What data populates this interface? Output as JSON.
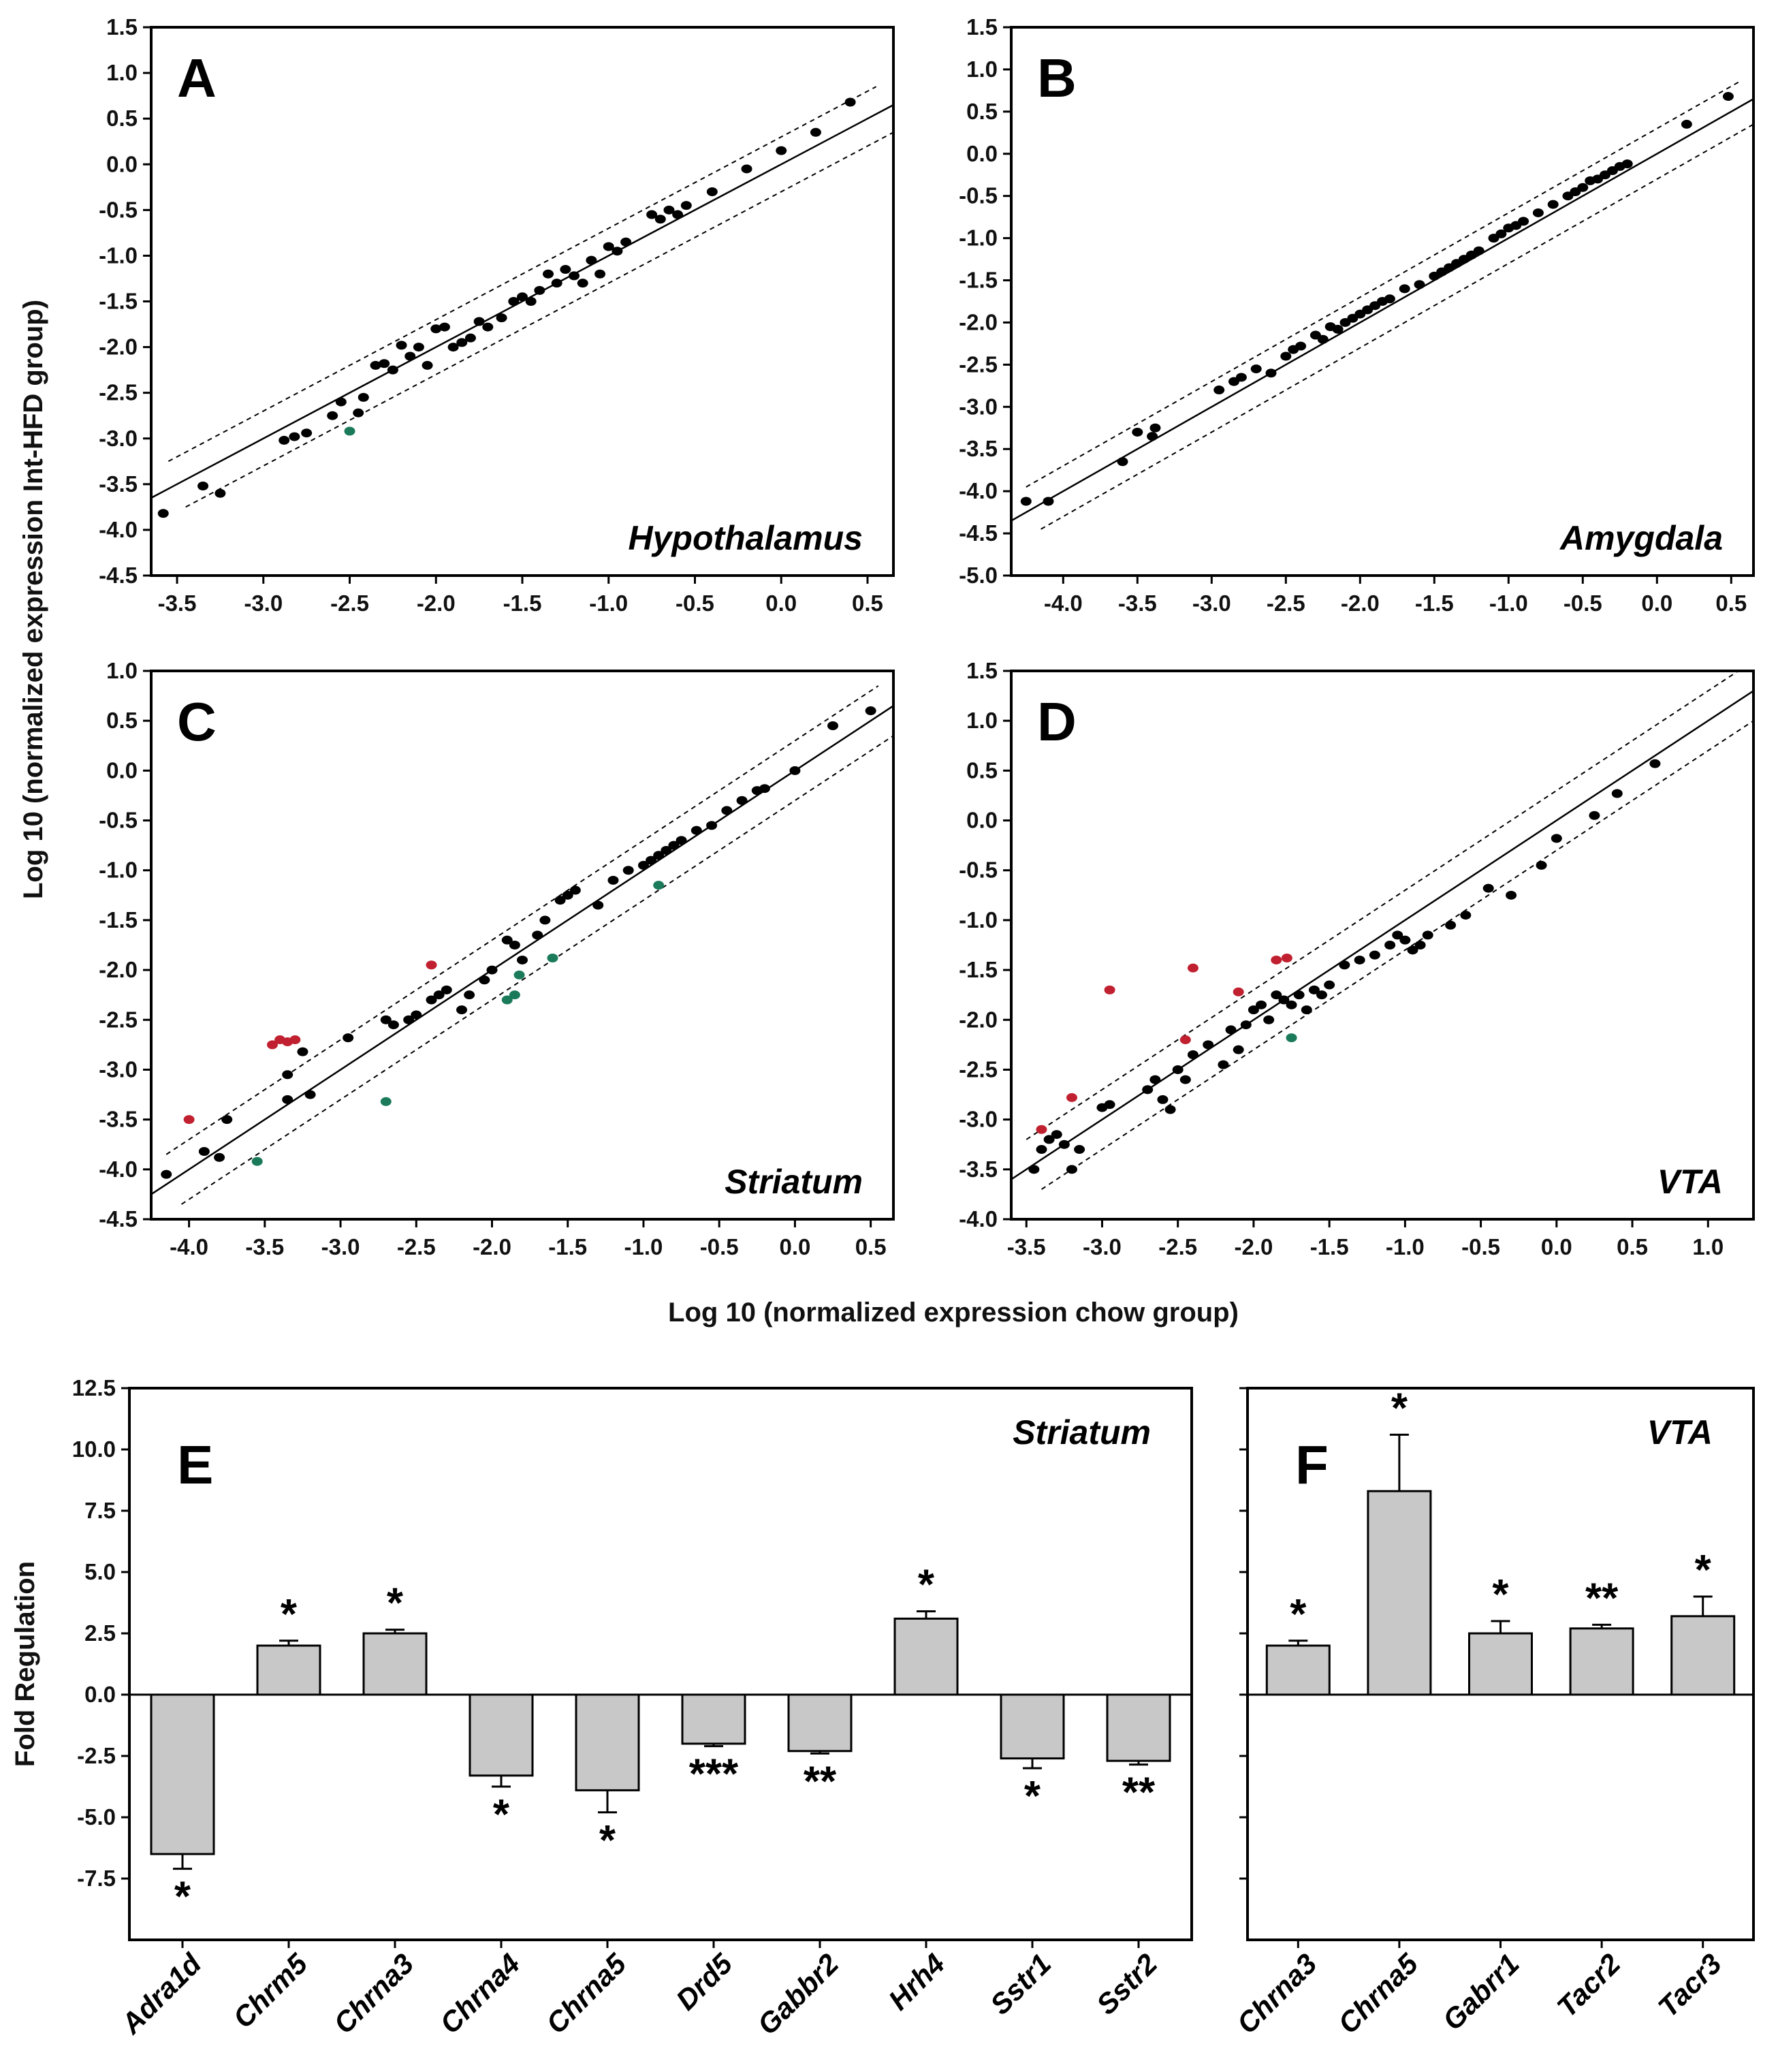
{
  "figure": {
    "shared_ylabel": "Log 10 (normalized expression Int-HFD group)",
    "shared_xlabel": "Log 10 (normalized expression chow group)",
    "bar_ylabel": "Fold Regulation"
  },
  "colors": {
    "normal": "#000000",
    "up": "#c0202f",
    "down": "#1a7a5a",
    "bar_fill": "#c8c8c8"
  },
  "chart_data": [
    {
      "id": "A",
      "type": "scatter",
      "panel_label": "A",
      "region": "Hypothalamus",
      "xlim": [
        -3.65,
        0.65
      ],
      "ylim": [
        -4.5,
        1.5
      ],
      "xticks": [
        -3.5,
        -3.0,
        -2.5,
        -2.0,
        -1.5,
        -1.0,
        -0.5,
        0.0,
        0.5
      ],
      "yticks": [
        1.5,
        1.0,
        0.5,
        0.0,
        -0.5,
        -1.0,
        -1.5,
        -2.0,
        -2.5,
        -3.0,
        -3.5,
        -4.0,
        -4.5
      ],
      "threshold_offset": 0.3,
      "points": [
        [
          -3.58,
          -3.82
        ],
        [
          -3.35,
          -3.52
        ],
        [
          -3.25,
          -3.6
        ],
        [
          -2.88,
          -3.02
        ],
        [
          -2.82,
          -2.98
        ],
        [
          -2.75,
          -2.94
        ],
        [
          -2.6,
          -2.75
        ],
        [
          -2.55,
          -2.6
        ],
        [
          -2.45,
          -2.72
        ],
        [
          -2.42,
          -2.55
        ],
        [
          -2.35,
          -2.2
        ],
        [
          -2.3,
          -2.18
        ],
        [
          -2.25,
          -2.25
        ],
        [
          -2.2,
          -1.98
        ],
        [
          -2.15,
          -2.1
        ],
        [
          -2.1,
          -2.0
        ],
        [
          -2.05,
          -2.2
        ],
        [
          -2.0,
          -1.8
        ],
        [
          -1.95,
          -1.78
        ],
        [
          -1.9,
          -2.0
        ],
        [
          -1.85,
          -1.95
        ],
        [
          -1.8,
          -1.9
        ],
        [
          -1.75,
          -1.72
        ],
        [
          -1.7,
          -1.78
        ],
        [
          -1.62,
          -1.68
        ],
        [
          -1.55,
          -1.5
        ],
        [
          -1.5,
          -1.45
        ],
        [
          -1.45,
          -1.5
        ],
        [
          -1.4,
          -1.38
        ],
        [
          -1.35,
          -1.2
        ],
        [
          -1.3,
          -1.3
        ],
        [
          -1.25,
          -1.15
        ],
        [
          -1.2,
          -1.22
        ],
        [
          -1.15,
          -1.3
        ],
        [
          -1.1,
          -1.05
        ],
        [
          -1.05,
          -1.2
        ],
        [
          -1.0,
          -0.9
        ],
        [
          -0.95,
          -0.95
        ],
        [
          -0.9,
          -0.85
        ],
        [
          -0.75,
          -0.55
        ],
        [
          -0.7,
          -0.6
        ],
        [
          -0.65,
          -0.5
        ],
        [
          -0.6,
          -0.55
        ],
        [
          -0.55,
          -0.45
        ],
        [
          -0.4,
          -0.3
        ],
        [
          -0.2,
          -0.05
        ],
        [
          0.0,
          0.15
        ],
        [
          0.2,
          0.35
        ],
        [
          0.4,
          0.68
        ]
      ],
      "up_points": [],
      "down_points": [
        [
          -2.5,
          -2.92
        ]
      ]
    },
    {
      "id": "B",
      "type": "scatter",
      "panel_label": "B",
      "region": "Amygdala",
      "xlim": [
        -4.35,
        0.65
      ],
      "ylim": [
        -5.0,
        1.5
      ],
      "xticks": [
        -4.0,
        -3.5,
        -3.0,
        -2.5,
        -2.0,
        -1.5,
        -1.0,
        -0.5,
        0.0,
        0.5
      ],
      "yticks": [
        1.5,
        1.0,
        0.5,
        0.0,
        -0.5,
        -1.0,
        -1.5,
        -2.0,
        -2.5,
        -3.0,
        -3.5,
        -4.0,
        -4.5,
        -5.0
      ],
      "threshold_offset": 0.3,
      "points": [
        [
          -4.25,
          -4.12
        ],
        [
          -4.1,
          -4.12
        ],
        [
          -3.6,
          -3.65
        ],
        [
          -3.5,
          -3.3
        ],
        [
          -3.4,
          -3.35
        ],
        [
          -3.38,
          -3.25
        ],
        [
          -2.95,
          -2.8
        ],
        [
          -2.85,
          -2.7
        ],
        [
          -2.8,
          -2.65
        ],
        [
          -2.7,
          -2.55
        ],
        [
          -2.6,
          -2.6
        ],
        [
          -2.5,
          -2.4
        ],
        [
          -2.45,
          -2.32
        ],
        [
          -2.4,
          -2.28
        ],
        [
          -2.3,
          -2.15
        ],
        [
          -2.25,
          -2.2
        ],
        [
          -2.2,
          -2.05
        ],
        [
          -2.15,
          -2.08
        ],
        [
          -2.1,
          -2.0
        ],
        [
          -2.05,
          -1.95
        ],
        [
          -2.0,
          -1.9
        ],
        [
          -1.95,
          -1.85
        ],
        [
          -1.9,
          -1.8
        ],
        [
          -1.85,
          -1.75
        ],
        [
          -1.8,
          -1.72
        ],
        [
          -1.7,
          -1.6
        ],
        [
          -1.6,
          -1.55
        ],
        [
          -1.5,
          -1.45
        ],
        [
          -1.45,
          -1.4
        ],
        [
          -1.4,
          -1.35
        ],
        [
          -1.35,
          -1.3
        ],
        [
          -1.3,
          -1.25
        ],
        [
          -1.25,
          -1.2
        ],
        [
          -1.2,
          -1.15
        ],
        [
          -1.1,
          -1.0
        ],
        [
          -1.05,
          -0.95
        ],
        [
          -1.0,
          -0.88
        ],
        [
          -0.95,
          -0.85
        ],
        [
          -0.9,
          -0.8
        ],
        [
          -0.8,
          -0.7
        ],
        [
          -0.7,
          -0.6
        ],
        [
          -0.6,
          -0.5
        ],
        [
          -0.55,
          -0.45
        ],
        [
          -0.5,
          -0.4
        ],
        [
          -0.45,
          -0.32
        ],
        [
          -0.4,
          -0.3
        ],
        [
          -0.35,
          -0.25
        ],
        [
          -0.3,
          -0.2
        ],
        [
          -0.25,
          -0.15
        ],
        [
          -0.2,
          -0.12
        ],
        [
          0.2,
          0.35
        ],
        [
          0.48,
          0.68
        ]
      ],
      "up_points": [],
      "down_points": []
    },
    {
      "id": "C",
      "type": "scatter",
      "panel_label": "C",
      "region": "Striatum",
      "xlim": [
        -4.25,
        0.65
      ],
      "ylim": [
        -4.5,
        1.0
      ],
      "xticks": [
        -4.0,
        -3.5,
        -3.0,
        -2.5,
        -2.0,
        -1.5,
        -1.0,
        -0.5,
        0.0,
        0.5
      ],
      "yticks": [
        1.0,
        0.5,
        0.0,
        -0.5,
        -1.0,
        -1.5,
        -2.0,
        -2.5,
        -3.0,
        -3.5,
        -4.0,
        -4.5
      ],
      "threshold_offset": 0.3,
      "points": [
        [
          -4.15,
          -4.05
        ],
        [
          -3.9,
          -3.82
        ],
        [
          -3.8,
          -3.88
        ],
        [
          -3.75,
          -3.5
        ],
        [
          -3.35,
          -3.05
        ],
        [
          -3.35,
          -3.3
        ],
        [
          -3.25,
          -2.82
        ],
        [
          -3.2,
          -3.25
        ],
        [
          -2.95,
          -2.68
        ],
        [
          -2.7,
          -2.5
        ],
        [
          -2.65,
          -2.55
        ],
        [
          -2.55,
          -2.5
        ],
        [
          -2.5,
          -2.45
        ],
        [
          -2.4,
          -2.3
        ],
        [
          -2.35,
          -2.25
        ],
        [
          -2.3,
          -2.2
        ],
        [
          -2.2,
          -2.4
        ],
        [
          -2.15,
          -2.25
        ],
        [
          -2.05,
          -2.1
        ],
        [
          -2.0,
          -2.0
        ],
        [
          -1.9,
          -1.7
        ],
        [
          -1.85,
          -1.75
        ],
        [
          -1.8,
          -1.9
        ],
        [
          -1.7,
          -1.65
        ],
        [
          -1.65,
          -1.5
        ],
        [
          -1.55,
          -1.3
        ],
        [
          -1.5,
          -1.25
        ],
        [
          -1.45,
          -1.2
        ],
        [
          -1.3,
          -1.35
        ],
        [
          -1.2,
          -1.1
        ],
        [
          -1.1,
          -1.0
        ],
        [
          -1.0,
          -0.95
        ],
        [
          -0.95,
          -0.9
        ],
        [
          -0.9,
          -0.85
        ],
        [
          -0.85,
          -0.8
        ],
        [
          -0.8,
          -0.75
        ],
        [
          -0.75,
          -0.7
        ],
        [
          -0.65,
          -0.6
        ],
        [
          -0.55,
          -0.55
        ],
        [
          -0.45,
          -0.4
        ],
        [
          -0.35,
          -0.3
        ],
        [
          -0.25,
          -0.2
        ],
        [
          -0.2,
          -0.18
        ],
        [
          0.0,
          0.0
        ],
        [
          0.25,
          0.45
        ],
        [
          0.5,
          0.6
        ]
      ],
      "up_points": [
        [
          -4.0,
          -3.5
        ],
        [
          -3.45,
          -2.75
        ],
        [
          -3.4,
          -2.7
        ],
        [
          -3.35,
          -2.72
        ],
        [
          -3.3,
          -2.7
        ],
        [
          -2.4,
          -1.95
        ]
      ],
      "down_points": [
        [
          -3.55,
          -3.92
        ],
        [
          -2.7,
          -3.32
        ],
        [
          -1.9,
          -2.3
        ],
        [
          -1.85,
          -2.25
        ],
        [
          -1.82,
          -2.05
        ],
        [
          -1.6,
          -1.88
        ],
        [
          -0.9,
          -1.15
        ]
      ]
    },
    {
      "id": "D",
      "type": "scatter",
      "panel_label": "D",
      "region": "VTA",
      "xlim": [
        -3.6,
        1.3
      ],
      "ylim": [
        -4.0,
        1.5
      ],
      "xticks": [
        -3.5,
        -3.0,
        -2.5,
        -2.0,
        -1.5,
        -1.0,
        -0.5,
        0.0,
        0.5,
        1.0
      ],
      "yticks": [
        1.5,
        1.0,
        0.5,
        0.0,
        -0.5,
        -1.0,
        -1.5,
        -2.0,
        -2.5,
        -3.0,
        -3.5,
        -4.0
      ],
      "threshold_offset": 0.3,
      "points": [
        [
          -3.45,
          -3.5
        ],
        [
          -3.4,
          -3.3
        ],
        [
          -3.35,
          -3.2
        ],
        [
          -3.3,
          -3.15
        ],
        [
          -3.25,
          -3.25
        ],
        [
          -3.2,
          -3.5
        ],
        [
          -3.15,
          -3.3
        ],
        [
          -3.0,
          -2.88
        ],
        [
          -2.95,
          -2.85
        ],
        [
          -2.7,
          -2.7
        ],
        [
          -2.65,
          -2.6
        ],
        [
          -2.6,
          -2.8
        ],
        [
          -2.55,
          -2.9
        ],
        [
          -2.5,
          -2.5
        ],
        [
          -2.45,
          -2.6
        ],
        [
          -2.4,
          -2.35
        ],
        [
          -2.3,
          -2.25
        ],
        [
          -2.2,
          -2.45
        ],
        [
          -2.15,
          -2.1
        ],
        [
          -2.1,
          -2.3
        ],
        [
          -2.05,
          -2.05
        ],
        [
          -2.0,
          -1.9
        ],
        [
          -1.95,
          -1.85
        ],
        [
          -1.9,
          -2.0
        ],
        [
          -1.85,
          -1.75
        ],
        [
          -1.8,
          -1.8
        ],
        [
          -1.75,
          -1.85
        ],
        [
          -1.7,
          -1.75
        ],
        [
          -1.65,
          -1.9
        ],
        [
          -1.6,
          -1.7
        ],
        [
          -1.55,
          -1.75
        ],
        [
          -1.5,
          -1.65
        ],
        [
          -1.4,
          -1.45
        ],
        [
          -1.3,
          -1.4
        ],
        [
          -1.2,
          -1.35
        ],
        [
          -1.1,
          -1.25
        ],
        [
          -1.05,
          -1.15
        ],
        [
          -1.0,
          -1.2
        ],
        [
          -0.95,
          -1.3
        ],
        [
          -0.9,
          -1.25
        ],
        [
          -0.85,
          -1.15
        ],
        [
          -0.7,
          -1.05
        ],
        [
          -0.6,
          -0.95
        ],
        [
          -0.45,
          -0.68
        ],
        [
          -0.3,
          -0.75
        ],
        [
          -0.1,
          -0.45
        ],
        [
          0.0,
          -0.18
        ],
        [
          0.25,
          0.05
        ],
        [
          0.4,
          0.27
        ],
        [
          0.65,
          0.57
        ]
      ],
      "up_points": [
        [
          -3.4,
          -3.1
        ],
        [
          -3.2,
          -2.78
        ],
        [
          -2.95,
          -1.7
        ],
        [
          -2.45,
          -2.2
        ],
        [
          -2.4,
          -1.48
        ],
        [
          -2.1,
          -1.72
        ],
        [
          -1.85,
          -1.4
        ],
        [
          -1.78,
          -1.38
        ]
      ],
      "down_points": [
        [
          -1.75,
          -2.18
        ]
      ]
    },
    {
      "id": "E",
      "type": "bar",
      "panel_label": "E",
      "region": "Striatum",
      "ylabel": "Fold Regulation",
      "ylim": [
        -10.0,
        12.5
      ],
      "yticks": [
        12.5,
        10.0,
        7.5,
        5.0,
        2.5,
        0.0,
        -2.5,
        -5.0,
        -7.5
      ],
      "categories": [
        "Adra1d",
        "Chrm5",
        "Chrna3",
        "Chrna4",
        "Chrna5",
        "Drd5",
        "Gabbr2",
        "Hrh4",
        "Sstr1",
        "Sstr2"
      ],
      "values": [
        -6.5,
        2.0,
        2.5,
        -3.3,
        -3.9,
        -2.0,
        -2.3,
        3.1,
        -2.6,
        -2.7
      ],
      "errors": [
        0.6,
        0.2,
        0.15,
        0.45,
        0.9,
        0.1,
        0.1,
        0.3,
        0.4,
        0.15
      ],
      "significance": [
        "*",
        "*",
        "*",
        "*",
        "*",
        "***",
        "**",
        "*",
        "*",
        "**"
      ]
    },
    {
      "id": "F",
      "type": "bar",
      "panel_label": "F",
      "region": "VTA",
      "ylim": [
        -10.0,
        12.5
      ],
      "categories": [
        "Chrna3",
        "Chrna5",
        "Gabrr1",
        "Tacr2",
        "Tacr3"
      ],
      "values": [
        2.0,
        8.3,
        2.5,
        2.7,
        3.2
      ],
      "errors": [
        0.2,
        2.3,
        0.5,
        0.15,
        0.8
      ],
      "significance": [
        "*",
        "*",
        "*",
        "**",
        "*"
      ]
    }
  ]
}
